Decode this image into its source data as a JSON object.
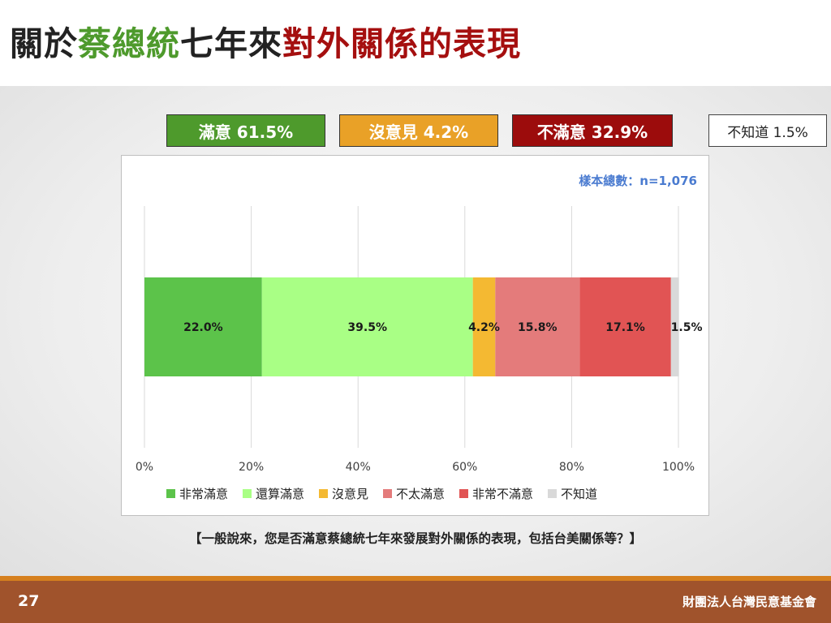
{
  "title": {
    "part1": "關於",
    "part2": "蔡總統",
    "part3": "七年來",
    "part4": "對外關係的表現",
    "part1_color": "#222222",
    "part2_color": "#4e9a2c",
    "part3_color": "#222222",
    "part4_color": "#a50f0f"
  },
  "summary": {
    "satisfied": "滿意 61.5%",
    "no_opinion": "沒意見 4.2%",
    "dissatisfied": "不滿意 32.9%",
    "unknown": "不知道 1.5%"
  },
  "chart_data": {
    "type": "bar",
    "orientation": "horizontal",
    "stacked": true,
    "sample_note": "樣本總數：n=1,076",
    "categories": [
      ""
    ],
    "series": [
      {
        "name": "非常滿意",
        "values": [
          22.0
        ],
        "label": "22.0%",
        "color": "#5cc34a"
      },
      {
        "name": "還算滿意",
        "values": [
          39.5
        ],
        "label": "39.5%",
        "color": "#a9ff85"
      },
      {
        "name": "沒意見",
        "values": [
          4.2
        ],
        "label": "4.2%",
        "color": "#f4b932"
      },
      {
        "name": "不太滿意",
        "values": [
          15.8
        ],
        "label": "15.8%",
        "color": "#e47b7b"
      },
      {
        "name": "非常不滿意",
        "values": [
          17.1
        ],
        "label": "17.1%",
        "color": "#e15454"
      },
      {
        "name": "不知道",
        "values": [
          1.5
        ],
        "label": "1.5%",
        "color": "#d9d9d9"
      }
    ],
    "x_ticks": [
      "0%",
      "20%",
      "40%",
      "60%",
      "80%",
      "100%"
    ],
    "xlim": [
      0,
      100
    ],
    "grid": true,
    "legend_position": "bottom"
  },
  "question": "【一般說來，您是否滿意蔡總統七年來發展對外關係的表現，包括台美關係等？】",
  "footer": {
    "page_number": "27",
    "organization": "財團法人台灣民意基金會"
  }
}
